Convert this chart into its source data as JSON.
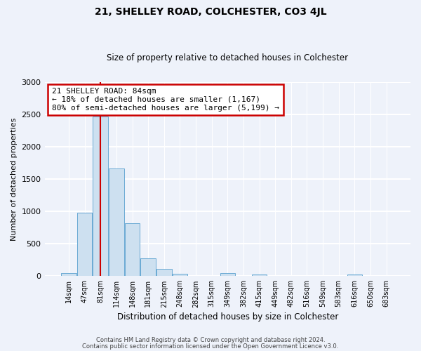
{
  "title1": "21, SHELLEY ROAD, COLCHESTER, CO3 4JL",
  "title2": "Size of property relative to detached houses in Colchester",
  "xlabel": "Distribution of detached houses by size in Colchester",
  "ylabel": "Number of detached properties",
  "footer1": "Contains HM Land Registry data © Crown copyright and database right 2024.",
  "footer2": "Contains public sector information licensed under the Open Government Licence v3.0.",
  "bar_labels": [
    "14sqm",
    "47sqm",
    "81sqm",
    "114sqm",
    "148sqm",
    "181sqm",
    "215sqm",
    "248sqm",
    "282sqm",
    "315sqm",
    "349sqm",
    "382sqm",
    "415sqm",
    "449sqm",
    "482sqm",
    "516sqm",
    "549sqm",
    "583sqm",
    "616sqm",
    "650sqm",
    "683sqm"
  ],
  "bar_values": [
    50,
    980,
    2470,
    1660,
    820,
    270,
    115,
    40,
    5,
    5,
    50,
    5,
    30,
    5,
    5,
    5,
    5,
    5,
    20,
    5,
    5
  ],
  "bar_color": "#cde0f0",
  "bar_edge_color": "#6aaad4",
  "vline_x_idx": 2,
  "vline_color": "#cc0000",
  "annotation_title": "21 SHELLEY ROAD: 84sqm",
  "annotation_line1": "← 18% of detached houses are smaller (1,167)",
  "annotation_line2": "80% of semi-detached houses are larger (5,199) →",
  "annotation_box_color": "#cc0000",
  "ylim": [
    0,
    3000
  ],
  "yticks": [
    0,
    500,
    1000,
    1500,
    2000,
    2500,
    3000
  ],
  "bg_color": "#eef2fa",
  "plot_bg_color": "#eef2fa",
  "grid_color": "#ffffff"
}
